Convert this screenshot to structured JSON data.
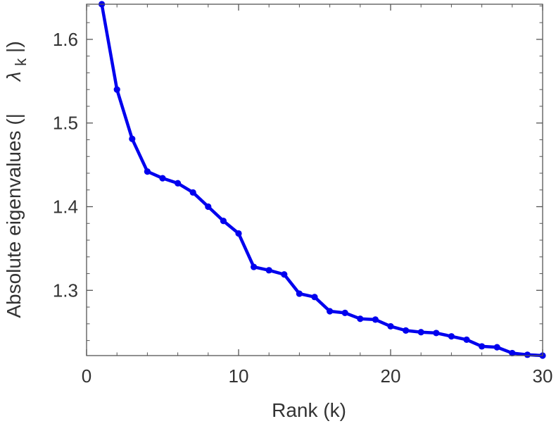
{
  "chart_data": {
    "type": "line",
    "title": "",
    "xlabel": "Rank (k)",
    "ylabel_prefix": "Absolute eigenvalues (|",
    "ylabel_symbol": "λ",
    "ylabel_subscript": "k",
    "ylabel_suffix": "|)",
    "xlim": [
      0,
      30
    ],
    "ylim": [
      1.222,
      1.642
    ],
    "x_ticks": [
      0,
      10,
      20,
      30
    ],
    "x_tick_labels": [
      "0",
      "10",
      "20",
      "30"
    ],
    "y_ticks": [
      1.3,
      1.4,
      1.5,
      1.6
    ],
    "y_tick_labels": [
      "1.3",
      "1.4",
      "1.5",
      "1.6"
    ],
    "grid": false,
    "legend": "none",
    "series": [
      {
        "color": "#0000ee",
        "marker": "circle",
        "x": [
          1,
          2,
          3,
          4,
          5,
          6,
          7,
          8,
          9,
          10,
          11,
          12,
          13,
          14,
          15,
          16,
          17,
          18,
          19,
          20,
          21,
          22,
          23,
          24,
          25,
          26,
          27,
          28,
          29,
          30
        ],
        "y": [
          1.642,
          1.54,
          1.481,
          1.442,
          1.434,
          1.428,
          1.417,
          1.4,
          1.383,
          1.368,
          1.328,
          1.324,
          1.319,
          1.296,
          1.292,
          1.275,
          1.273,
          1.266,
          1.265,
          1.257,
          1.252,
          1.25,
          1.249,
          1.245,
          1.241,
          1.233,
          1.232,
          1.225,
          1.223,
          1.222
        ]
      }
    ]
  }
}
